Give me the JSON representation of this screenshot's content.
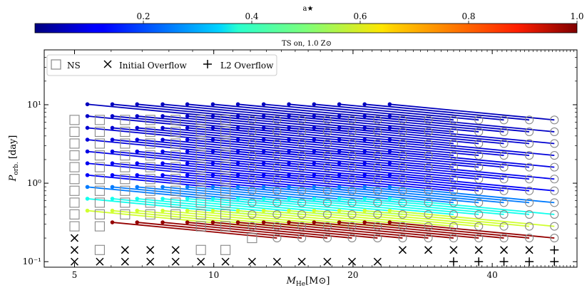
{
  "colorbar": {
    "label": "a★",
    "range": [
      0.0,
      1.0
    ],
    "ticks": [
      "0.2",
      "0.4",
      "0.6",
      "0.8",
      "1.0"
    ],
    "tick_values": [
      0.2,
      0.4,
      0.6,
      0.8,
      1.0
    ],
    "colormap": "jet"
  },
  "subtitle": "TS on, 1.0 Z⊙",
  "legend": {
    "items": [
      {
        "marker": "square",
        "label": "NS"
      },
      {
        "marker": "x",
        "label": "Initial Overflow"
      },
      {
        "marker": "plus",
        "label": "L2 Overflow"
      }
    ],
    "placement": "top-left"
  },
  "axes": {
    "xlabel": "M_He[M⊙]",
    "xlabel_main": "M",
    "xlabel_sub": "He",
    "xlabel_rest": "[M⊙]",
    "ylabel": "P_orb. [day]",
    "ylabel_main": "P",
    "ylabel_sub": "orb.",
    "ylabel_rest": " [day]",
    "xscale": "log",
    "yscale": "log",
    "xlim": [
      4.3,
      61
    ],
    "ylim": [
      0.085,
      50
    ],
    "xticks": [
      5,
      10,
      20,
      40
    ],
    "xtick_labels": [
      "5",
      "10",
      "20",
      "40"
    ],
    "yticks": [
      0.1,
      1,
      10
    ],
    "ytick_labels": [
      "10⁻¹",
      "10⁰",
      "10¹"
    ]
  },
  "chart_data": {
    "type": "scatter",
    "x": "M_He [Msun], log-spaced grid",
    "mass_grid": [
      5.0,
      5.67,
      6.43,
      7.29,
      8.27,
      9.38,
      10.6,
      12.1,
      13.7,
      15.5,
      17.6,
      19.9,
      22.6,
      25.6,
      29.1,
      33.0,
      37.4,
      42.4,
      48.1,
      54.5
    ],
    "period_grid": [
      0.1,
      0.141,
      0.2,
      0.282,
      0.4,
      0.565,
      0.8,
      1.13,
      1.6,
      2.26,
      3.2,
      4.52,
      6.4
    ],
    "ns_squares": [
      {
        "mass_index": 0,
        "period_indices": [
          3,
          4,
          5,
          6,
          7,
          8,
          9,
          10,
          11,
          12
        ]
      },
      {
        "mass_index": 1,
        "period_indices": [
          1,
          3,
          4,
          5,
          6,
          7,
          8,
          9,
          10,
          11,
          12
        ]
      },
      {
        "mass_index": 2,
        "period_indices": [
          4,
          5,
          6,
          7,
          8,
          9,
          10,
          11,
          12
        ]
      },
      {
        "mass_index": 3,
        "period_indices": [
          4,
          5,
          6,
          7,
          8,
          9,
          10,
          11,
          12
        ]
      },
      {
        "mass_index": 4,
        "period_indices": [
          4,
          5,
          6,
          7,
          8,
          9,
          10,
          11,
          12
        ]
      },
      {
        "mass_index": 5,
        "period_indices": [
          1,
          3,
          4,
          5,
          6,
          7,
          8,
          9,
          10,
          11,
          12
        ]
      },
      {
        "mass_index": 6,
        "period_indices": [
          1,
          3,
          4,
          5,
          6,
          7,
          8,
          9,
          10,
          11,
          12
        ]
      },
      {
        "mass_index": 7,
        "period_indices": [
          2
        ]
      }
    ],
    "initial_overflow": [
      {
        "mass_index": 0,
        "period_indices": [
          0,
          1,
          2
        ]
      },
      {
        "mass_index": 1,
        "period_indices": [
          0
        ]
      },
      {
        "mass_index": 2,
        "period_indices": [
          0,
          1
        ]
      },
      {
        "mass_index": 3,
        "period_indices": [
          0,
          1
        ]
      },
      {
        "mass_index": 4,
        "period_indices": [
          0,
          1
        ]
      },
      {
        "mass_index": 5,
        "period_indices": [
          0
        ]
      },
      {
        "mass_index": 6,
        "period_indices": [
          0
        ]
      },
      {
        "mass_index": 7,
        "period_indices": [
          0
        ]
      },
      {
        "mass_index": 8,
        "period_indices": [
          0
        ]
      },
      {
        "mass_index": 9,
        "period_indices": [
          0
        ]
      },
      {
        "mass_index": 10,
        "period_indices": [
          0
        ]
      },
      {
        "mass_index": 11,
        "period_indices": [
          0
        ]
      },
      {
        "mass_index": 12,
        "period_indices": [
          0
        ]
      },
      {
        "mass_index": 13,
        "period_indices": [
          1
        ]
      },
      {
        "mass_index": 14,
        "period_indices": [
          1
        ]
      },
      {
        "mass_index": 15,
        "period_indices": [
          1
        ]
      },
      {
        "mass_index": 16,
        "period_indices": [
          1
        ]
      },
      {
        "mass_index": 17,
        "period_indices": [
          1
        ]
      },
      {
        "mass_index": 18,
        "period_indices": [
          1
        ]
      }
    ],
    "l2_overflow": [
      {
        "mass_index": 15,
        "period_indices": [
          0
        ]
      },
      {
        "mass_index": 16,
        "period_indices": [
          0
        ]
      },
      {
        "mass_index": 17,
        "period_indices": [
          0
        ]
      },
      {
        "mass_index": 18,
        "period_indices": [
          0
        ]
      },
      {
        "mass_index": 19,
        "period_indices": [
          0,
          1
        ]
      }
    ],
    "bh_circles_first_mass_index": 7,
    "bh_circle_period_index_min": 2,
    "track_endpoint_shift": {
      "log10_mass": -0.356,
      "log10_period": 0.2
    },
    "spin_trend": {
      "a_at_period_index_2": 0.98,
      "a_at_period_index_6": 0.12,
      "a_at_period_index_12": 0.06
    }
  }
}
